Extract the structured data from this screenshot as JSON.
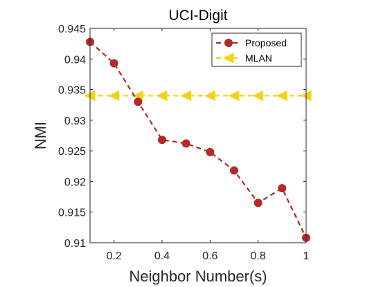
{
  "chart_data": {
    "type": "line",
    "title": "UCI-Digit",
    "xlabel": "Neighbor Number(s)",
    "ylabel": "NMI",
    "xlim": [
      0.1,
      1.0
    ],
    "ylim": [
      0.91,
      0.945
    ],
    "xticks": [
      0.2,
      0.4,
      0.6,
      0.8,
      1.0
    ],
    "xtick_labels": [
      "0.2",
      "0.4",
      "0.6",
      "0.8",
      "1"
    ],
    "yticks": [
      0.91,
      0.915,
      0.92,
      0.925,
      0.93,
      0.935,
      0.94,
      0.945
    ],
    "ytick_labels": [
      "0.91",
      "0.915",
      "0.92",
      "0.925",
      "0.93",
      "0.935",
      "0.94",
      "0.945"
    ],
    "grid": false,
    "legend_position": "top-right",
    "x": [
      0.1,
      0.2,
      0.3,
      0.4,
      0.5,
      0.6,
      0.7,
      0.8,
      0.9,
      1.0
    ],
    "series": [
      {
        "name": "Proposed",
        "color": "#b22a2a",
        "marker": "circle",
        "line_style": "dashed",
        "values": [
          0.9428,
          0.9393,
          0.933,
          0.9268,
          0.9262,
          0.9248,
          0.9218,
          0.9165,
          0.9189,
          0.9108
        ]
      },
      {
        "name": "MLAN",
        "color": "#f2d21b",
        "marker": "triangle-left",
        "line_style": "dashed",
        "values": [
          0.934,
          0.934,
          0.934,
          0.934,
          0.934,
          0.934,
          0.934,
          0.934,
          0.934,
          0.934
        ]
      }
    ]
  }
}
